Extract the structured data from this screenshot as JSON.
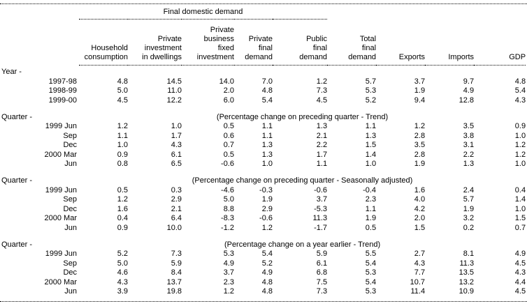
{
  "table": {
    "spanner_label": "Final domestic demand",
    "columns": [
      "Household\nconsumption",
      "Private\ninvestment\nin dwellings",
      "Private\nbusiness\nfixed\ninvestment",
      "Private\nfinal\ndemand",
      "Public\nfinal\ndemand",
      "Total\nfinal\ndemand",
      "Exports",
      "Imports",
      "GDP"
    ],
    "sections": [
      {
        "label": "Year -",
        "caption": "",
        "rows": [
          {
            "label": "1997-98",
            "values": [
              "4.8",
              "14.5",
              "14.0",
              "7.0",
              "1.2",
              "5.7",
              "3.7",
              "9.7",
              "4.8"
            ]
          },
          {
            "label": "1998-99",
            "values": [
              "5.0",
              "11.0",
              "2.0",
              "4.8",
              "7.3",
              "5.3",
              "1.9",
              "4.9",
              "5.4"
            ]
          },
          {
            "label": "1999-00",
            "values": [
              "4.5",
              "12.2",
              "6.0",
              "5.4",
              "4.5",
              "5.2",
              "9.4",
              "12.8",
              "4.3"
            ]
          }
        ]
      },
      {
        "label": "Quarter -",
        "caption": "(Percentage change on preceding quarter - Trend)",
        "rows": [
          {
            "label": "1999 Jun",
            "values": [
              "1.2",
              "1.0",
              "0.5",
              "1.1",
              "1.3",
              "1.1",
              "1.2",
              "3.5",
              "0.9"
            ]
          },
          {
            "label": "Sep",
            "values": [
              "1.1",
              "1.7",
              "0.6",
              "1.1",
              "2.1",
              "1.3",
              "2.8",
              "3.8",
              "1.0"
            ]
          },
          {
            "label": "Dec",
            "values": [
              "1.0",
              "4.3",
              "0.7",
              "1.3",
              "2.2",
              "1.5",
              "3.5",
              "3.1",
              "1.2"
            ]
          },
          {
            "label": "2000 Mar",
            "values": [
              "0.9",
              "6.1",
              "0.5",
              "1.3",
              "1.7",
              "1.4",
              "2.8",
              "2.2",
              "1.2"
            ]
          },
          {
            "label": "Jun",
            "values": [
              "0.8",
              "6.5",
              "-0.6",
              "1.0",
              "1.1",
              "1.0",
              "1.9",
              "1.3",
              "1.0"
            ]
          }
        ]
      },
      {
        "label": "Quarter -",
        "caption": "(Percentage change on preceding quarter - Seasonally adjusted)",
        "rows": [
          {
            "label": "1999 Jun",
            "values": [
              "0.5",
              "0.3",
              "-4.6",
              "-0.3",
              "-0.6",
              "-0.4",
              "1.6",
              "2.4",
              "0.4"
            ]
          },
          {
            "label": "Sep",
            "values": [
              "1.2",
              "2.9",
              "5.0",
              "1.9",
              "3.7",
              "2.3",
              "4.0",
              "5.7",
              "1.4"
            ]
          },
          {
            "label": "Dec",
            "values": [
              "1.6",
              "2.1",
              "8.8",
              "2.9",
              "-5.3",
              "1.1",
              "4.2",
              "1.9",
              "1.0"
            ]
          },
          {
            "label": "2000 Mar",
            "values": [
              "0.4",
              "6.4",
              "-8.3",
              "-0.6",
              "11.3",
              "1.9",
              "2.0",
              "3.2",
              "1.5"
            ]
          },
          {
            "label": "Jun",
            "values": [
              "0.9",
              "10.0",
              "-1.2",
              "1.2",
              "-1.7",
              "0.5",
              "1.5",
              "0.2",
              "0.7"
            ]
          }
        ]
      },
      {
        "label": "Quarter -",
        "caption": "(Percentage change on a year earlier - Trend)",
        "rows": [
          {
            "label": "1999 Jun",
            "values": [
              "5.2",
              "7.3",
              "5.3",
              "5.4",
              "5.9",
              "5.5",
              "2.7",
              "8.1",
              "4.9"
            ]
          },
          {
            "label": "Sep",
            "values": [
              "5.0",
              "5.9",
              "4.9",
              "5.2",
              "6.1",
              "5.4",
              "4.3",
              "11.3",
              "4.5"
            ]
          },
          {
            "label": "Dec",
            "values": [
              "4.6",
              "8.4",
              "3.7",
              "4.9",
              "6.8",
              "5.3",
              "7.7",
              "13.5",
              "4.3"
            ]
          },
          {
            "label": "2000 Mar",
            "values": [
              "4.3",
              "13.7",
              "2.3",
              "4.8",
              "7.5",
              "5.4",
              "10.7",
              "13.2",
              "4.4"
            ]
          },
          {
            "label": "Jun",
            "values": [
              "3.9",
              "19.8",
              "1.2",
              "4.8",
              "7.3",
              "5.3",
              "11.4",
              "10.9",
              "4.5"
            ]
          }
        ]
      }
    ]
  }
}
